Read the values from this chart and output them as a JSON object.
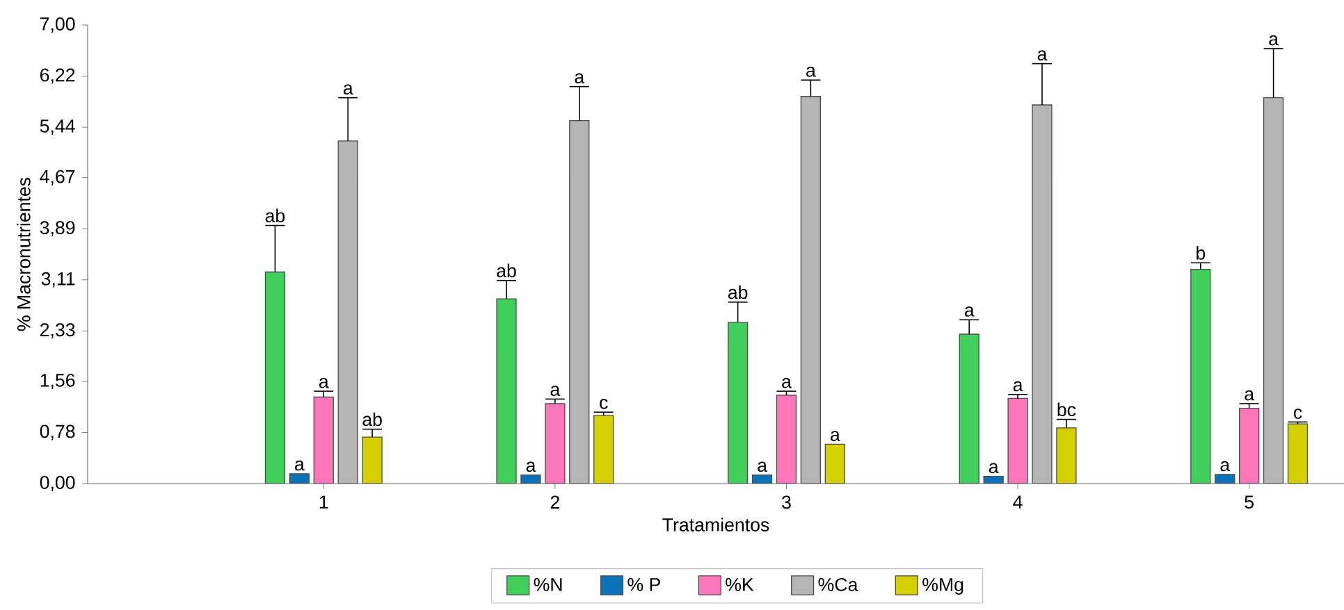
{
  "chart_data": {
    "type": "bar",
    "xlabel": "Tratamientos",
    "ylabel": "% Macronutrientes",
    "categories": [
      "1",
      "2",
      "3",
      "4",
      "5"
    ],
    "ylim": [
      0,
      7.0
    ],
    "yticks": [
      {
        "value": 0,
        "label": "0,00"
      },
      {
        "value": 0.78,
        "label": "0,78"
      },
      {
        "value": 1.56,
        "label": "1,56"
      },
      {
        "value": 2.33,
        "label": "2,33"
      },
      {
        "value": 3.11,
        "label": "3,11"
      },
      {
        "value": 3.89,
        "label": "3,89"
      },
      {
        "value": 4.67,
        "label": "4,67"
      },
      {
        "value": 5.44,
        "label": "5,44"
      },
      {
        "value": 6.22,
        "label": "6,22"
      },
      {
        "value": 7.0,
        "label": "7,00"
      }
    ],
    "legend": "bottom",
    "grid": false,
    "series": [
      {
        "name": "%N",
        "color": "#3fcf5a",
        "values": [
          3.23,
          2.82,
          2.46,
          2.28,
          3.27
        ],
        "errors": [
          [
            3.23,
            3.94
          ],
          [
            2.82,
            3.1
          ],
          [
            2.46,
            2.77
          ],
          [
            2.28,
            2.5
          ],
          [
            3.27,
            3.37
          ]
        ],
        "value_labels": [
          "ab",
          "ab",
          "ab",
          "a",
          "b"
        ]
      },
      {
        "name": "% P",
        "color": "#0a72b8",
        "values": [
          0.15,
          0.13,
          0.13,
          0.11,
          0.14
        ],
        "value_labels": [
          "a",
          "a",
          "a",
          "a",
          "a"
        ]
      },
      {
        "name": "%K",
        "color": "#ff77bb",
        "values": [
          1.32,
          1.22,
          1.35,
          1.3,
          1.15
        ],
        "errors": [
          [
            1.32,
            1.41
          ],
          [
            1.22,
            1.29
          ],
          [
            1.35,
            1.41
          ],
          [
            1.3,
            1.36
          ],
          [
            1.15,
            1.22
          ]
        ],
        "value_labels": [
          "a",
          "a",
          "a",
          "a",
          "a"
        ]
      },
      {
        "name": "%Ca",
        "color": "#b4b4b4",
        "values": [
          5.23,
          5.54,
          5.91,
          5.78,
          5.89
        ],
        "errors": [
          [
            5.23,
            5.89
          ],
          [
            5.54,
            6.06
          ],
          [
            5.91,
            6.16
          ],
          [
            5.78,
            6.41
          ],
          [
            5.89,
            6.64
          ]
        ],
        "value_labels": [
          "a",
          "a",
          "a",
          "a",
          "a"
        ]
      },
      {
        "name": "%Mg",
        "color": "#d4d000",
        "values": [
          0.71,
          1.04,
          0.6,
          0.85,
          0.91
        ],
        "errors": [
          [
            0.71,
            0.83
          ],
          [
            1.04,
            1.09
          ],
          null,
          [
            0.85,
            0.98
          ],
          [
            0.91,
            0.94
          ]
        ],
        "value_labels": [
          "ab",
          "c",
          "a",
          "bc",
          "c"
        ]
      }
    ]
  }
}
